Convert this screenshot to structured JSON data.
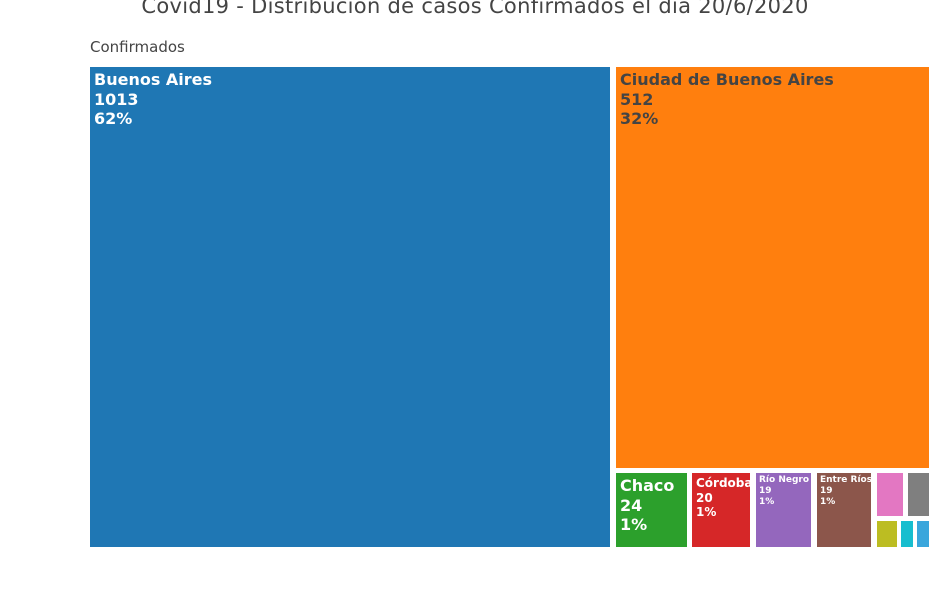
{
  "title": "Covid19 - Distribución de casos Confirmados el día 20/6/2020",
  "root_label": "Confirmados",
  "chart_data": {
    "type": "treemap",
    "title": "Covid19 - Distribución de casos Confirmados el día 20/6/2020",
    "root": "Confirmados",
    "items": [
      {
        "name": "Buenos Aires",
        "value": 1013,
        "percent": "62%",
        "color": "#1f77b4",
        "text_color": "#ffffff",
        "label_shown": true
      },
      {
        "name": "Ciudad de Buenos Aires",
        "value": 512,
        "percent": "32%",
        "color": "#ff7f0e",
        "text_color": "#444444",
        "label_shown": true
      },
      {
        "name": "Chaco",
        "value": 24,
        "percent": "1%",
        "color": "#2ca02c",
        "text_color": "#ffffff",
        "label_shown": true
      },
      {
        "name": "Córdoba",
        "value": 20,
        "percent": "1%",
        "color": "#d62728",
        "text_color": "#ffffff",
        "label_shown": true
      },
      {
        "name": "Río Negro",
        "value": 19,
        "percent": "1%",
        "color": "#9467bd",
        "text_color": "#ffffff",
        "label_shown": true
      },
      {
        "name": "Entre Ríos",
        "value": 19,
        "percent": "1%",
        "color": "#8c564b",
        "text_color": "#ffffff",
        "label_shown": true
      },
      {
        "name": "",
        "value": null,
        "percent": "",
        "color": "#e377c2",
        "text_color": "#ffffff",
        "label_shown": false
      },
      {
        "name": "",
        "value": null,
        "percent": "",
        "color": "#7f7f7f",
        "text_color": "#ffffff",
        "label_shown": false
      },
      {
        "name": "",
        "value": null,
        "percent": "",
        "color": "#bcbd22",
        "text_color": "#ffffff",
        "label_shown": false
      },
      {
        "name": "",
        "value": null,
        "percent": "",
        "color": "#17becf",
        "text_color": "#ffffff",
        "label_shown": false
      },
      {
        "name": "",
        "value": null,
        "percent": "",
        "color": "#3aa6dc",
        "text_color": "#ffffff",
        "label_shown": false
      }
    ]
  }
}
